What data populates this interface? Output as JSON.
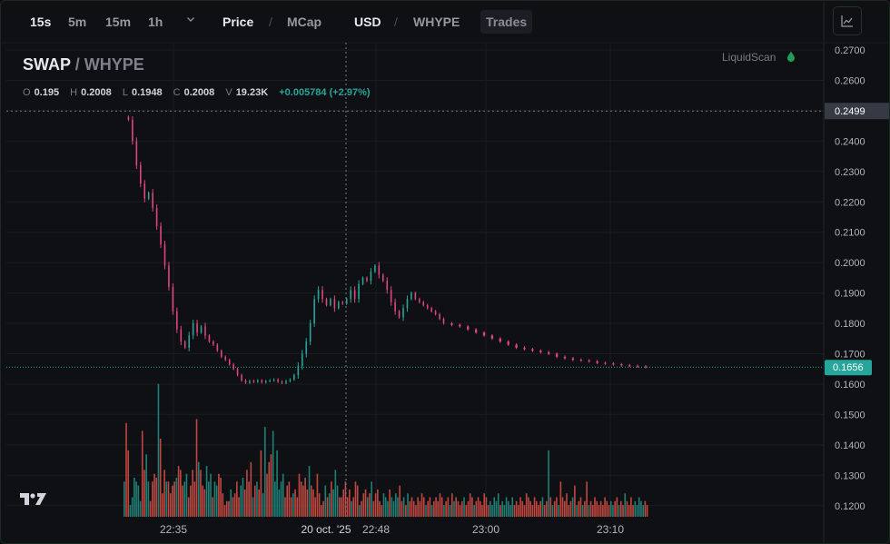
{
  "toolbar": {
    "intervals": [
      "15s",
      "5m",
      "15m",
      "1h"
    ],
    "active_interval": "15s",
    "price_label": "Price",
    "mcap_label": "MCap",
    "usd_label": "USD",
    "whype_label": "WHYPE",
    "trades_label": "Trades",
    "separator": "/",
    "chart_type_icon": "line-chart-icon",
    "dropdown_icon": "chevron-down-icon"
  },
  "symbol": {
    "base": "SWAP",
    "quote": "/ WHYPE"
  },
  "ohlc": {
    "o_label": "O",
    "o": "0.195",
    "h_label": "H",
    "h": "0.2008",
    "l_label": "L",
    "l": "0.1948",
    "c_label": "C",
    "c": "0.2008",
    "v_label": "V",
    "v": "19.23K",
    "change": "+0.005784 (+2.97%)"
  },
  "brand": {
    "name": "LiquidScan",
    "icon": "drop-icon"
  },
  "colors": {
    "up": "#26a69a",
    "down": "#e0457b",
    "vol_up": "#1e7f76",
    "vol_down": "#c0473f",
    "price_tag": "#26a69a"
  },
  "chart_data": {
    "type": "candlestick",
    "y_ticks": [
      "0.2700",
      "0.2600",
      "0.2500",
      "0.2400",
      "0.2300",
      "0.2200",
      "0.2100",
      "0.2000",
      "0.1900",
      "0.1800",
      "0.1700",
      "0.1600",
      "0.1500",
      "0.1400",
      "0.1300",
      "0.1200"
    ],
    "ylim": [
      0.118,
      0.2705
    ],
    "x_ticks": [
      "22:35",
      "22:48",
      "23:00",
      "23:10"
    ],
    "crosshair": {
      "price_label": "0.2499",
      "time_label": "20 oct. '25",
      "price": 0.2499
    },
    "last_price": {
      "label": "0.1656",
      "value": 0.1656
    },
    "price_path": [
      [
        0,
        0.248
      ],
      [
        2,
        0.247
      ],
      [
        4,
        0.24
      ],
      [
        6,
        0.232
      ],
      [
        8,
        0.226
      ],
      [
        10,
        0.221
      ],
      [
        12,
        0.223
      ],
      [
        14,
        0.218
      ],
      [
        16,
        0.212
      ],
      [
        18,
        0.206
      ],
      [
        20,
        0.199
      ],
      [
        22,
        0.192
      ],
      [
        24,
        0.184
      ],
      [
        26,
        0.178
      ],
      [
        28,
        0.174
      ],
      [
        30,
        0.172
      ],
      [
        32,
        0.176
      ],
      [
        34,
        0.18
      ],
      [
        36,
        0.177
      ],
      [
        38,
        0.179
      ],
      [
        40,
        0.176
      ],
      [
        42,
        0.174
      ],
      [
        44,
        0.173
      ],
      [
        46,
        0.171
      ],
      [
        48,
        0.169
      ],
      [
        50,
        0.168
      ],
      [
        52,
        0.1665
      ],
      [
        54,
        0.165
      ],
      [
        56,
        0.163
      ],
      [
        58,
        0.1612
      ],
      [
        60,
        0.1605
      ],
      [
        62,
        0.161
      ],
      [
        64,
        0.1608
      ],
      [
        66,
        0.1612
      ],
      [
        68,
        0.1606
      ],
      [
        70,
        0.161
      ],
      [
        72,
        0.1612
      ],
      [
        74,
        0.1615
      ],
      [
        76,
        0.1608
      ],
      [
        78,
        0.1604
      ],
      [
        80,
        0.161
      ],
      [
        82,
        0.1615
      ],
      [
        84,
        0.163
      ],
      [
        86,
        0.166
      ],
      [
        88,
        0.17
      ],
      [
        90,
        0.174
      ],
      [
        92,
        0.18
      ],
      [
        94,
        0.188
      ],
      [
        96,
        0.191
      ],
      [
        98,
        0.188
      ],
      [
        100,
        0.186
      ],
      [
        102,
        0.188
      ],
      [
        104,
        0.185
      ],
      [
        106,
        0.187
      ],
      [
        108,
        0.1865
      ],
      [
        110,
        0.188
      ],
      [
        112,
        0.191
      ],
      [
        114,
        0.188
      ],
      [
        116,
        0.193
      ],
      [
        118,
        0.195
      ],
      [
        120,
        0.194
      ],
      [
        122,
        0.197
      ],
      [
        124,
        0.199
      ],
      [
        126,
        0.196
      ],
      [
        128,
        0.194
      ],
      [
        130,
        0.191
      ],
      [
        132,
        0.187
      ],
      [
        134,
        0.184
      ],
      [
        136,
        0.182
      ],
      [
        138,
        0.185
      ],
      [
        140,
        0.188
      ],
      [
        142,
        0.19
      ],
      [
        144,
        0.188
      ],
      [
        146,
        0.187
      ],
      [
        148,
        0.186
      ],
      [
        150,
        0.185
      ],
      [
        152,
        0.184
      ],
      [
        154,
        0.183
      ],
      [
        156,
        0.1815
      ],
      [
        158,
        0.18
      ],
      [
        162,
        0.1795
      ],
      [
        166,
        0.179
      ],
      [
        170,
        0.178
      ],
      [
        174,
        0.177
      ],
      [
        178,
        0.176
      ],
      [
        182,
        0.175
      ],
      [
        186,
        0.174
      ],
      [
        190,
        0.173
      ],
      [
        194,
        0.172
      ],
      [
        198,
        0.1715
      ],
      [
        202,
        0.171
      ],
      [
        206,
        0.1705
      ],
      [
        210,
        0.17
      ],
      [
        214,
        0.169
      ],
      [
        218,
        0.1685
      ],
      [
        222,
        0.168
      ],
      [
        226,
        0.1678
      ],
      [
        230,
        0.1675
      ],
      [
        234,
        0.167
      ],
      [
        238,
        0.1668
      ],
      [
        242,
        0.1665
      ],
      [
        246,
        0.1662
      ],
      [
        250,
        0.166
      ],
      [
        254,
        0.1658
      ],
      [
        258,
        0.1656
      ]
    ],
    "volume": [
      9,
      24,
      17,
      3,
      5,
      10,
      9,
      8,
      4,
      22,
      12,
      16,
      9,
      4,
      9,
      11,
      10,
      34,
      20,
      6,
      12,
      9,
      9,
      6,
      8,
      9,
      10,
      13,
      12,
      8,
      9,
      11,
      5,
      8,
      12,
      9,
      25,
      14,
      12,
      8,
      7,
      13,
      9,
      11,
      5,
      9,
      8,
      11,
      10,
      6,
      3,
      4,
      4,
      7,
      5,
      6,
      9,
      5,
      8,
      10,
      7,
      12,
      9,
      14,
      5,
      8,
      9,
      7,
      17,
      6,
      23,
      11,
      14,
      16,
      22,
      9,
      17,
      7,
      9,
      11,
      5,
      8,
      9,
      5,
      6,
      7,
      5,
      11,
      9,
      8,
      10,
      7,
      13,
      8,
      7,
      5,
      11,
      6,
      3,
      4,
      8,
      5,
      6,
      9,
      7,
      12,
      8,
      5,
      5,
      7,
      9,
      5,
      7,
      4,
      5,
      9,
      8,
      3,
      4,
      6,
      7,
      5,
      6,
      9,
      4,
      6,
      7,
      4,
      3,
      6,
      5,
      4,
      7,
      5,
      4,
      6,
      5,
      8,
      4,
      5,
      3,
      6,
      4,
      5,
      4,
      3,
      5,
      4,
      6,
      5,
      3,
      4,
      5,
      3,
      4,
      5,
      4,
      6,
      5,
      3,
      4,
      5,
      3,
      6,
      4,
      5,
      4,
      3,
      4,
      5,
      3,
      4,
      6,
      5,
      3,
      4,
      5,
      4,
      3,
      6,
      5,
      3,
      4,
      3,
      5,
      4,
      6,
      3,
      4,
      3,
      5,
      4,
      3,
      5,
      3,
      4,
      3,
      5,
      4,
      3,
      6,
      5,
      4,
      3,
      5,
      4,
      3,
      4,
      5,
      3,
      4,
      17,
      5,
      3,
      4,
      5,
      3,
      9,
      5,
      4,
      6,
      3,
      4,
      5,
      8,
      3,
      4,
      5,
      3,
      4,
      9,
      3,
      4,
      3,
      5,
      4,
      3,
      4,
      3,
      5,
      4,
      3,
      4,
      3,
      4,
      5,
      3,
      4,
      3,
      6,
      4,
      3,
      5,
      3,
      4,
      3,
      5,
      4,
      3,
      4,
      3
    ]
  }
}
